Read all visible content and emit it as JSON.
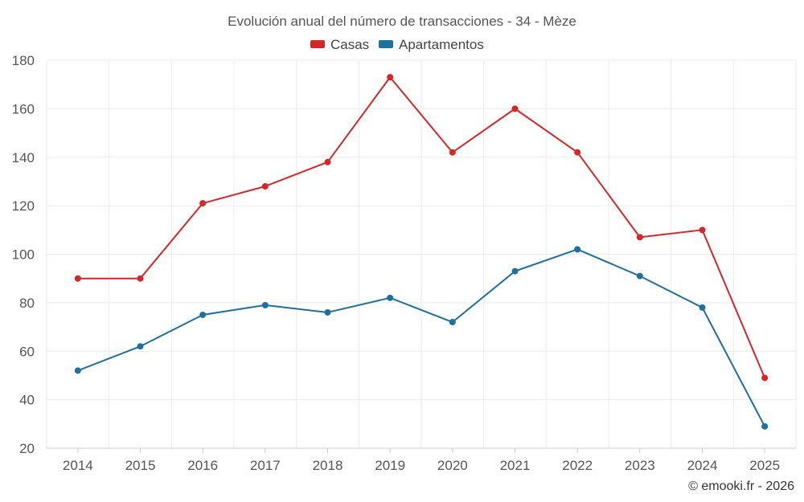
{
  "chart_data": {
    "type": "line",
    "title": "Evolución anual del número de transacciones - 34 - Mèze",
    "categories": [
      "2014",
      "2015",
      "2016",
      "2017",
      "2018",
      "2019",
      "2020",
      "2021",
      "2022",
      "2023",
      "2024",
      "2025"
    ],
    "series": [
      {
        "name": "Casas",
        "color": "#d62728",
        "values": [
          90,
          90,
          121,
          128,
          138,
          173,
          142,
          160,
          142,
          107,
          110,
          49
        ]
      },
      {
        "name": "Apartamentos",
        "color": "#1f6f9f",
        "values": [
          52,
          62,
          75,
          79,
          76,
          82,
          72,
          93,
          102,
          91,
          78,
          29
        ]
      }
    ],
    "ylim": [
      20,
      180
    ],
    "yticks": [
      20,
      40,
      60,
      80,
      100,
      120,
      140,
      160,
      180
    ],
    "grid": true,
    "legend": "top-center",
    "xlabel": "",
    "ylabel": ""
  },
  "credit": "© emooki.fr - 2026"
}
